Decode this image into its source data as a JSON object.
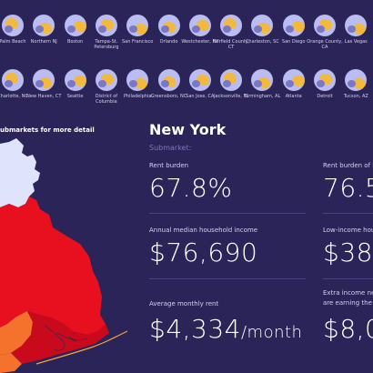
{
  "thumbnails_row1": [
    {
      "label": "Palm Beach"
    },
    {
      "label": "Northern NJ"
    },
    {
      "label": "Boston"
    },
    {
      "label": "Tampa-St. Petersburg"
    },
    {
      "label": "San Francisco"
    },
    {
      "label": "Orlando"
    },
    {
      "label": "Westchester, NY"
    },
    {
      "label": "Fairfield County, CT"
    },
    {
      "label": "Charleston, SC"
    },
    {
      "label": "San Diego"
    },
    {
      "label": "Orange County, CA"
    },
    {
      "label": "Las Vegas"
    }
  ],
  "thumbnails_row2": [
    {
      "label": "Charlotte, NC"
    },
    {
      "label": "New Haven, CT"
    },
    {
      "label": "Seattle"
    },
    {
      "label": "District of Columbia"
    },
    {
      "label": "Philadelphia"
    },
    {
      "label": "Greensboro, NC"
    },
    {
      "label": "San Jose, CA"
    },
    {
      "label": "Jacksonville, FL"
    },
    {
      "label": "Birmingham, AL"
    },
    {
      "label": "Atlanta"
    },
    {
      "label": "Detroit"
    },
    {
      "label": "Tucson, AZ"
    }
  ],
  "map_hint": "ubmarkets for more detail",
  "detail": {
    "city": "New York",
    "submarket_label": "Submarket:",
    "rent_burden_label": "Rent burden",
    "rent_burden_value": "67.8%",
    "rent_burden_low_label": "Rent burden of lo",
    "rent_burden_low_value": "76.5",
    "income_label": "Annual median household income",
    "income_value": "$76,690",
    "low_income_label": "Low-income hous",
    "low_income_value": "$38",
    "rent_label": "Average monthly rent",
    "rent_value": "$4,334",
    "rent_unit": "/month",
    "extra_label_line1": "Extra income ne",
    "extra_label_line2": "are earning the m",
    "extra_value": "$8,0"
  },
  "colors": {
    "background": "#2b2459",
    "thumb_circle": "#b9bdf1",
    "map_red": "#e8101e",
    "map_orange": "#f4722b",
    "map_light": "#dfe3fb"
  }
}
